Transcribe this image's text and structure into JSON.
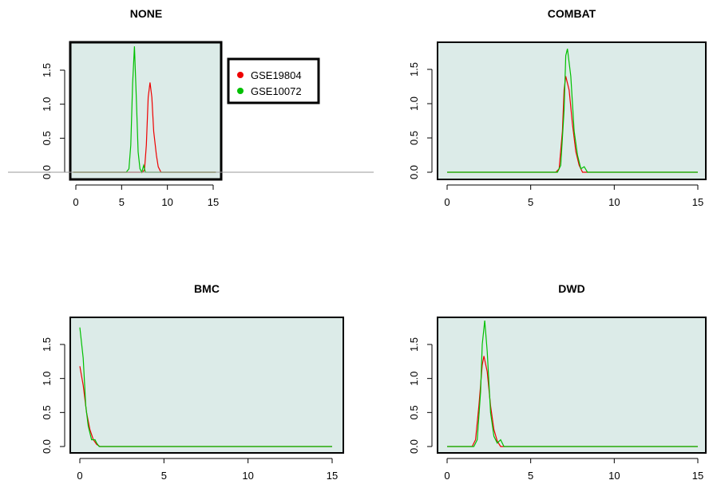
{
  "colors": {
    "panel_bg": "#dcebe8",
    "series": [
      "#ee0000",
      "#00c000"
    ],
    "frame": "#000000",
    "baseline": "#999999"
  },
  "chart_data": [
    {
      "type": "line",
      "title": "NONE",
      "xlim": [
        0,
        15
      ],
      "ylim": [
        0,
        1.85
      ],
      "x_ticks": [
        "0",
        "5",
        "10",
        "15"
      ],
      "y_ticks": [
        "0.0",
        "0.5",
        "1.0",
        "1.5"
      ],
      "legend": {
        "placement": "right-outside",
        "entries": [
          "GSE19804",
          "GSE10072"
        ]
      },
      "series": [
        {
          "name": "GSE19804",
          "x": [
            -0.3,
            7.3,
            7.5,
            7.7,
            7.9,
            8.1,
            8.3,
            8.5,
            8.8,
            9.0,
            9.3,
            15.3
          ],
          "y": [
            0,
            0,
            0.04,
            0.4,
            1.1,
            1.32,
            1.1,
            0.6,
            0.25,
            0.08,
            0,
            0
          ]
        },
        {
          "name": "GSE10072",
          "x": [
            -0.3,
            5.5,
            5.8,
            6.0,
            6.2,
            6.4,
            6.6,
            6.8,
            7.0,
            7.2,
            7.4,
            7.6,
            15.3
          ],
          "y": [
            0,
            0,
            0.05,
            0.4,
            1.3,
            1.85,
            1.1,
            0.3,
            0.05,
            0,
            0.1,
            0,
            0
          ]
        }
      ]
    },
    {
      "type": "line",
      "title": "COMBAT",
      "xlim": [
        0,
        15
      ],
      "ylim": [
        0,
        1.85
      ],
      "x_ticks": [
        "0",
        "5",
        "10",
        "15"
      ],
      "y_ticks": [
        "0.0",
        "0.5",
        "1.0",
        "1.5"
      ],
      "series": [
        {
          "name": "GSE19804",
          "x": [
            0,
            6.5,
            6.7,
            6.9,
            7.0,
            7.1,
            7.3,
            7.5,
            7.7,
            7.9,
            8.1,
            15
          ],
          "y": [
            0,
            0,
            0.05,
            0.6,
            1.2,
            1.4,
            1.2,
            0.7,
            0.3,
            0.1,
            0,
            0
          ]
        },
        {
          "name": "GSE10072",
          "x": [
            0,
            6.6,
            6.8,
            7.0,
            7.1,
            7.2,
            7.4,
            7.6,
            7.8,
            8.0,
            8.2,
            8.4,
            15
          ],
          "y": [
            0,
            0,
            0.1,
            0.9,
            1.7,
            1.8,
            1.4,
            0.6,
            0.25,
            0.05,
            0.08,
            0,
            0
          ]
        }
      ]
    },
    {
      "type": "line",
      "title": "BMC",
      "xlim": [
        0,
        15
      ],
      "ylim": [
        0,
        1.85
      ],
      "x_ticks": [
        "0",
        "5",
        "10",
        "15"
      ],
      "y_ticks": [
        "0.0",
        "0.5",
        "1.0",
        "1.5"
      ],
      "series": [
        {
          "name": "GSE19804",
          "x": [
            0,
            0.2,
            0.4,
            0.6,
            0.8,
            1.0,
            1.2,
            15
          ],
          "y": [
            1.18,
            0.9,
            0.5,
            0.25,
            0.1,
            0.03,
            0,
            0
          ]
        },
        {
          "name": "GSE10072",
          "x": [
            0,
            0.2,
            0.35,
            0.5,
            0.7,
            0.9,
            1.0,
            1.15,
            15
          ],
          "y": [
            1.75,
            1.3,
            0.6,
            0.3,
            0.1,
            0.1,
            0.05,
            0,
            0
          ]
        }
      ]
    },
    {
      "type": "line",
      "title": "DWD",
      "xlim": [
        0,
        15
      ],
      "ylim": [
        0,
        1.85
      ],
      "x_ticks": [
        "0",
        "5",
        "10",
        "15"
      ],
      "y_ticks": [
        "0.0",
        "0.5",
        "1.0",
        "1.5"
      ],
      "series": [
        {
          "name": "GSE19804",
          "x": [
            0,
            1.5,
            1.7,
            1.9,
            2.1,
            2.2,
            2.4,
            2.6,
            2.8,
            3.0,
            3.2,
            15
          ],
          "y": [
            0,
            0,
            0.1,
            0.6,
            1.2,
            1.33,
            1.1,
            0.6,
            0.25,
            0.08,
            0,
            0
          ]
        },
        {
          "name": "GSE10072",
          "x": [
            0,
            1.6,
            1.8,
            2.0,
            2.1,
            2.25,
            2.4,
            2.6,
            2.8,
            3.0,
            3.2,
            3.4,
            15
          ],
          "y": [
            0,
            0,
            0.1,
            0.8,
            1.5,
            1.85,
            1.4,
            0.5,
            0.15,
            0.05,
            0.1,
            0,
            0
          ]
        }
      ]
    }
  ]
}
